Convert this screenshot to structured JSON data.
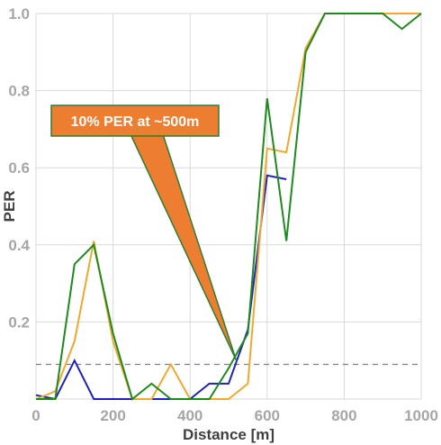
{
  "chart_data": {
    "type": "line",
    "xlabel": "Distance [m]",
    "ylabel": "PER",
    "xlim": [
      0,
      1000
    ],
    "ylim": [
      0,
      1.0
    ],
    "x_ticks": [
      0,
      200,
      400,
      600,
      800,
      1000
    ],
    "x_tick_labels": [
      "0",
      "200",
      "400",
      "600",
      "800",
      "1000"
    ],
    "y_ticks": [
      0.2,
      0.4,
      0.6,
      0.8,
      1.0
    ],
    "y_tick_labels": [
      "0.2",
      "0.4",
      "0.6",
      "0.8",
      "1.0"
    ],
    "grid": true,
    "reference_line": {
      "y": 0.09,
      "style": "dashed",
      "color": "#808080"
    },
    "annotation": {
      "text": "10% PER at ~500m",
      "pointer_to": {
        "x": 520,
        "y": 0.1
      },
      "fill": "#ed7d31",
      "border": "#2e7d32"
    },
    "series": [
      {
        "color": "#2020c0",
        "x": [
          0,
          50,
          100,
          150,
          200,
          250,
          300,
          350,
          400,
          450,
          500,
          550,
          600,
          650
        ],
        "y": [
          0.01,
          0.0,
          0.1,
          0.0,
          0.0,
          0.0,
          0.0,
          0.0,
          0.0,
          0.04,
          0.04,
          0.18,
          0.58,
          0.57
        ]
      },
      {
        "color": "#f0a830",
        "x": [
          0,
          50,
          100,
          150,
          200,
          250,
          300,
          350,
          400,
          450,
          500,
          550,
          600,
          650,
          700,
          750,
          800,
          850,
          900,
          950,
          1000
        ],
        "y": [
          0.0,
          0.02,
          0.15,
          0.41,
          0.15,
          0.0,
          0.0,
          0.09,
          0.0,
          0.0,
          0.0,
          0.04,
          0.65,
          0.64,
          0.91,
          1.0,
          1.0,
          1.0,
          1.0,
          1.0,
          1.0
        ]
      },
      {
        "color": "#1e8a1e",
        "x": [
          0,
          50,
          100,
          150,
          200,
          250,
          300,
          350,
          400,
          450,
          500,
          550,
          600,
          650,
          700,
          750,
          800,
          850,
          900,
          950,
          1000
        ],
        "y": [
          0.0,
          0.0,
          0.35,
          0.4,
          0.17,
          0.0,
          0.04,
          0.0,
          0.0,
          0.0,
          0.08,
          0.17,
          0.78,
          0.41,
          0.9,
          1.0,
          1.0,
          1.0,
          1.0,
          0.96,
          1.0
        ]
      }
    ]
  }
}
